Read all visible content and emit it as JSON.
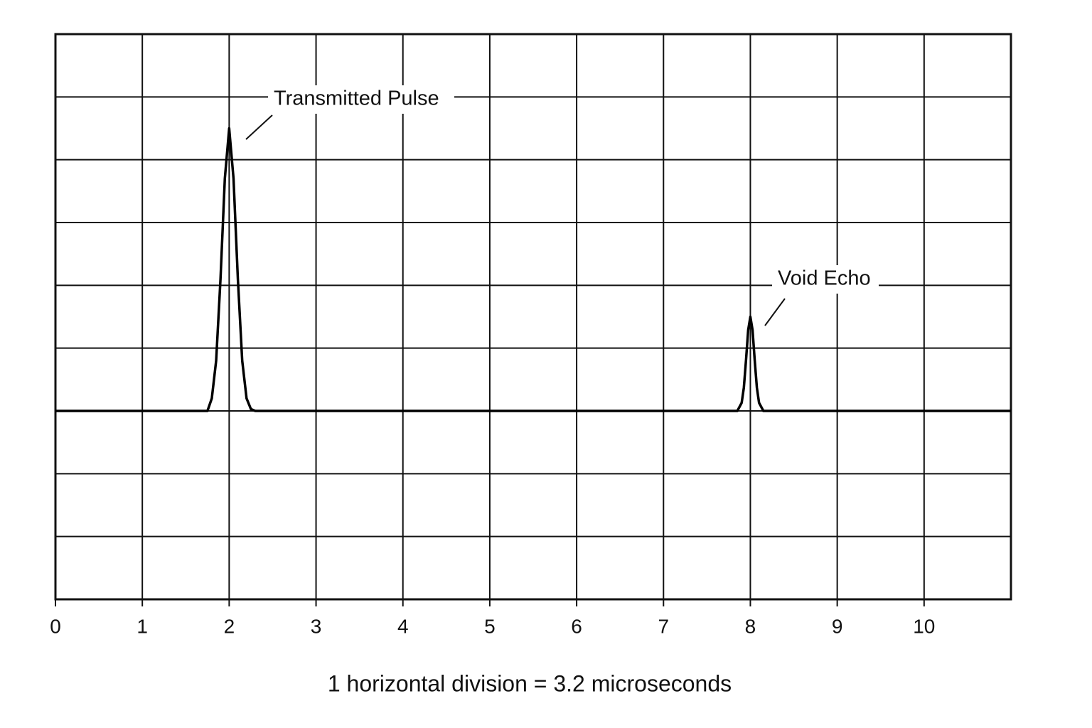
{
  "chart_data": {
    "type": "line",
    "caption": "1 horizontal division = 3.2 microseconds",
    "annotations": [
      "Transmitted Pulse",
      "Void Echo"
    ],
    "x": [
      0,
      1.75,
      1.8,
      1.85,
      1.9,
      1.95,
      2.0,
      2.05,
      2.1,
      2.15,
      2.2,
      2.25,
      2.3,
      7.85,
      7.9,
      7.925,
      7.95,
      7.975,
      8.0,
      8.025,
      8.05,
      8.075,
      8.1,
      8.15,
      11
    ],
    "series": [
      {
        "color": "#000000",
        "values": [
          0,
          0,
          0.2,
          0.8,
          2.1,
          3.7,
          4.5,
          3.7,
          2.1,
          0.8,
          0.2,
          0.03,
          0,
          0,
          0.13,
          0.37,
          0.81,
          1.29,
          1.5,
          1.29,
          0.81,
          0.37,
          0.13,
          0,
          0
        ]
      }
    ],
    "xlim": [
      0,
      11
    ],
    "xticks": [
      0,
      1,
      2,
      3,
      4,
      5,
      6,
      7,
      8,
      9,
      10
    ],
    "ylim": [
      -3,
      6
    ],
    "ygrid": [
      -3,
      -2,
      -1,
      0,
      1,
      2,
      3,
      4,
      5,
      6
    ],
    "grid": true
  }
}
